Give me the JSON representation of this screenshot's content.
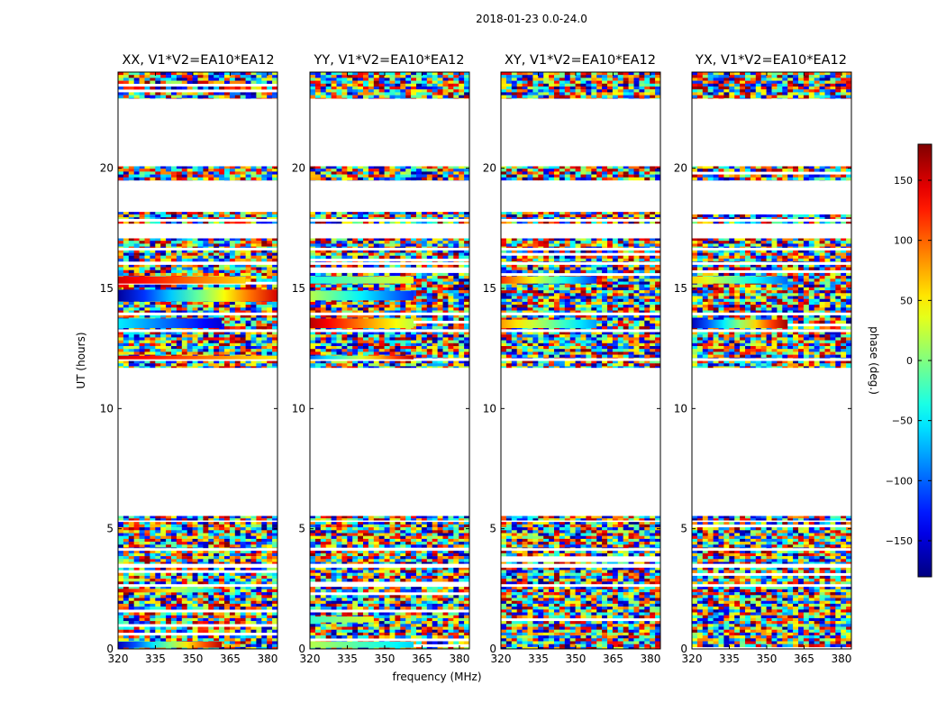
{
  "figure": {
    "suptitle": "2018-01-23 0.0-24.0",
    "xlabel": "frequency (MHz)",
    "ylabel": "UT (hours)",
    "colorbar_label": "phase (deg.)"
  },
  "chart_data": {
    "type": "heatmap",
    "panels": [
      {
        "title": "XX, V1*V2=EA10*EA12",
        "pol": "XX"
      },
      {
        "title": "YY, V1*V2=EA10*EA12",
        "pol": "YY"
      },
      {
        "title": "XY, V1*V2=EA10*EA12",
        "pol": "XY"
      },
      {
        "title": "YX, V1*V2=EA10*EA12",
        "pol": "YX"
      }
    ],
    "x": {
      "range": [
        320,
        384
      ],
      "ticks": [
        320,
        335,
        350,
        365,
        380
      ],
      "unit": "MHz"
    },
    "y": {
      "range": [
        0,
        24
      ],
      "ticks": [
        0,
        5,
        10,
        15,
        20
      ],
      "unit": "hours"
    },
    "colorbar": {
      "range": [
        -180,
        180
      ],
      "ticks": [
        -150,
        -100,
        -50,
        0,
        50,
        100,
        150
      ],
      "colormap": "jet"
    },
    "data_intervals_ut": [
      [
        0.0,
        2.6
      ],
      [
        2.7,
        3.4
      ],
      [
        3.55,
        4.1
      ],
      [
        4.2,
        5.3
      ],
      [
        5.35,
        5.55
      ],
      [
        11.7,
        12.0
      ],
      [
        12.1,
        13.2
      ],
      [
        13.3,
        13.9
      ],
      [
        14.0,
        16.0
      ],
      [
        16.1,
        16.6
      ],
      [
        16.7,
        17.1
      ],
      [
        17.7,
        17.8
      ],
      [
        17.9,
        18.2
      ],
      [
        19.5,
        20.1
      ],
      [
        22.9,
        24.0
      ]
    ],
    "coherent_bands": [
      {
        "panel": "XX",
        "y_range": [
          14.45,
          14.95
        ],
        "phase_start": -170,
        "phase_end": 150,
        "x_end_frac": 1.0
      },
      {
        "panel": "XX",
        "y_range": [
          13.35,
          13.75
        ],
        "phase_start": -50,
        "phase_end": -150,
        "x_end_frac": 0.65
      },
      {
        "panel": "XX",
        "y_range": [
          12.05,
          12.2
        ],
        "phase_start": 150,
        "phase_end": 50,
        "x_end_frac": 1.0
      },
      {
        "panel": "XX",
        "y_range": [
          0.05,
          0.3
        ],
        "phase_start": -160,
        "phase_end": 160,
        "x_end_frac": 0.65
      },
      {
        "panel": "XX",
        "y_range": [
          2.35,
          2.5
        ],
        "phase_start": 160,
        "phase_end": -80,
        "x_end_frac": 0.65
      },
      {
        "panel": "XX",
        "y_range": [
          15.2,
          15.5
        ],
        "phase_start": 150,
        "phase_end": 60,
        "x_end_frac": 0.8
      },
      {
        "panel": "YY",
        "y_range": [
          13.35,
          13.75
        ],
        "phase_start": 160,
        "phase_end": 20,
        "x_end_frac": 0.65
      },
      {
        "panel": "YY",
        "y_range": [
          14.5,
          14.9
        ],
        "phase_start": 20,
        "phase_end": -120,
        "x_end_frac": 0.65
      },
      {
        "panel": "YY",
        "y_range": [
          15.2,
          15.5
        ],
        "phase_start": -40,
        "phase_end": 40,
        "x_end_frac": 0.65
      },
      {
        "panel": "YY",
        "y_range": [
          12.05,
          12.2
        ],
        "phase_start": -100,
        "phase_end": 160,
        "x_end_frac": 0.65
      },
      {
        "panel": "YY",
        "y_range": [
          0.05,
          0.3
        ],
        "phase_start": 20,
        "phase_end": -60,
        "x_end_frac": 0.65
      },
      {
        "panel": "YY",
        "y_range": [
          1.1,
          1.35
        ],
        "phase_start": -30,
        "phase_end": 40,
        "x_end_frac": 0.4
      },
      {
        "panel": "XY",
        "y_range": [
          13.35,
          13.7
        ],
        "phase_start": 80,
        "phase_end": -80,
        "x_end_frac": 0.6
      },
      {
        "panel": "XY",
        "y_range": [
          15.2,
          15.5
        ],
        "phase_start": 120,
        "phase_end": -120,
        "x_end_frac": 0.6
      },
      {
        "panel": "YX",
        "y_range": [
          15.2,
          15.5
        ],
        "phase_start": 60,
        "phase_end": -100,
        "x_end_frac": 0.6
      },
      {
        "panel": "YX",
        "y_range": [
          13.35,
          13.7
        ],
        "phase_start": -160,
        "phase_end": 170,
        "x_end_frac": 0.6
      }
    ]
  }
}
